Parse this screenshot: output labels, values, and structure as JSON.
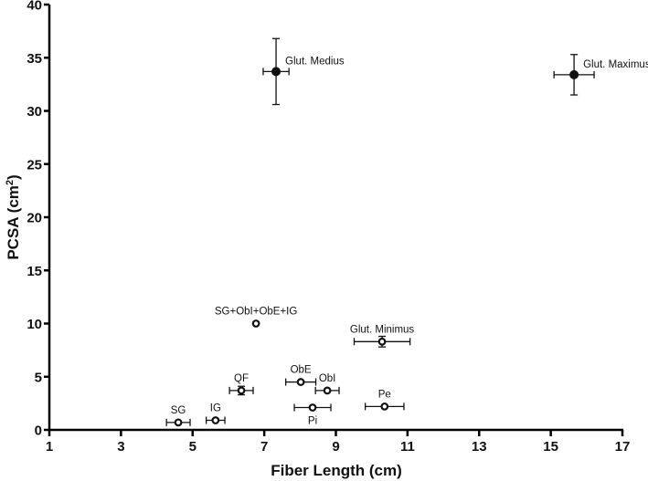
{
  "chart_data": {
    "type": "scatter",
    "title": "",
    "xlabel": "Fiber Length (cm)",
    "ylabel": "PCSA (cm²)",
    "ylabel_base": "PCSA (cm",
    "ylabel_sup": "2",
    "ylabel_tail": ")",
    "xlim": [
      1,
      17
    ],
    "ylim": [
      0,
      40
    ],
    "xticks": [
      1,
      3,
      5,
      7,
      9,
      11,
      13,
      15,
      17
    ],
    "yticks": [
      0,
      5,
      10,
      15,
      20,
      25,
      30,
      35,
      40
    ],
    "grid": false,
    "legend": "none",
    "points": [
      {
        "label": "Glut. Medius",
        "x": 7.33,
        "y": 33.7,
        "xerr": 0.36,
        "yerr": 3.1,
        "filled": true,
        "label_pos": "right-up"
      },
      {
        "label": "Glut. Maximus",
        "x": 15.65,
        "y": 33.4,
        "xerr": 0.56,
        "yerr": 1.9,
        "filled": true,
        "label_pos": "right-up"
      },
      {
        "label": "SG+ObI+ObE+IG",
        "x": 6.77,
        "y": 10.0,
        "xerr": 0,
        "yerr": 0,
        "filled": false,
        "label_pos": "above"
      },
      {
        "label": "Glut. Minimus",
        "x": 10.29,
        "y": 8.3,
        "xerr": 0.78,
        "yerr": 0.5,
        "filled": false,
        "label_pos": "above"
      },
      {
        "label": "QF",
        "x": 6.36,
        "y": 3.7,
        "xerr": 0.33,
        "yerr": 0.4,
        "filled": false,
        "label_pos": "above"
      },
      {
        "label": "ObE",
        "x": 8.02,
        "y": 4.5,
        "xerr": 0.42,
        "yerr": 0,
        "filled": false,
        "label_pos": "above"
      },
      {
        "label": "ObI",
        "x": 8.76,
        "y": 3.7,
        "xerr": 0.33,
        "yerr": 0,
        "filled": false,
        "label_pos": "above"
      },
      {
        "label": "Pi",
        "x": 8.35,
        "y": 2.1,
        "xerr": 0.51,
        "yerr": 0,
        "filled": false,
        "label_pos": "below"
      },
      {
        "label": "Pe",
        "x": 10.36,
        "y": 2.2,
        "xerr": 0.54,
        "yerr": 0,
        "filled": false,
        "label_pos": "above"
      },
      {
        "label": "SG",
        "x": 4.6,
        "y": 0.7,
        "xerr": 0.33,
        "yerr": 0,
        "filled": false,
        "label_pos": "above"
      },
      {
        "label": "IG",
        "x": 5.64,
        "y": 0.9,
        "xerr": 0.26,
        "yerr": 0,
        "filled": false,
        "label_pos": "above"
      }
    ]
  },
  "colors": {
    "axis": "#000000",
    "marker": "#111111",
    "background": "#ffffff"
  }
}
